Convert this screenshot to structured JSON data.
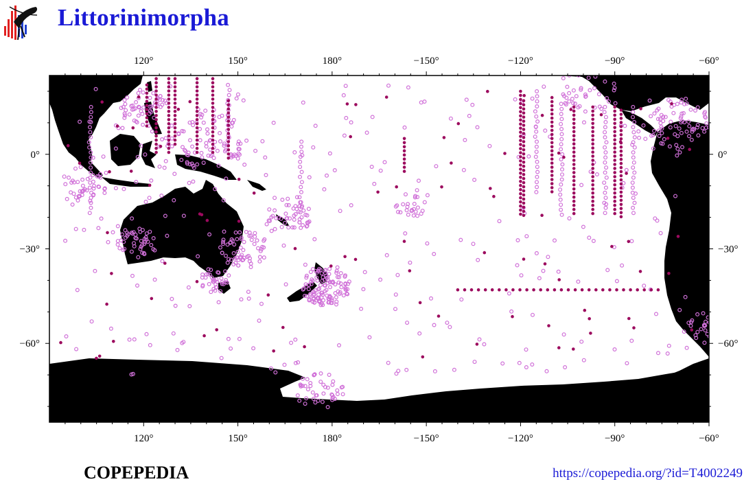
{
  "header": {
    "title": "Littorinimorpha"
  },
  "footer": {
    "brand": "COPEPEDIA",
    "url": "https://copepedia.org/?id=T4002249"
  },
  "colors": {
    "title": "#1a1ad6",
    "land": "#000000",
    "open_marker": "#d070d8",
    "filled_marker": "#9c0a5e"
  },
  "map": {
    "projection": "equirectangular",
    "lon_range": [
      90,
      300
    ],
    "lat_range": [
      -85,
      25
    ],
    "top_ticks": [
      "120°",
      "150°",
      "180°",
      "−150°",
      "−120°",
      "−90°",
      "−60°"
    ],
    "bottom_ticks": [
      "120°",
      "150°",
      "180°",
      "−150°",
      "−120°",
      "−90°",
      "−60°"
    ],
    "left_ticks": [
      "0°",
      "−30°",
      "−60°"
    ],
    "right_ticks": [
      "0°",
      "−30°",
      "−60°"
    ],
    "tick_lons": [
      120,
      150,
      180,
      210,
      240,
      270,
      300
    ],
    "tick_lats": [
      0,
      -30,
      -60
    ],
    "filled_series_lines": [
      {
        "lon": 121,
        "lat_from": 22,
        "lat_to": 8
      },
      {
        "lon": 124,
        "lat_from": 24,
        "lat_to": 0
      },
      {
        "lon": 128,
        "lat_from": 24,
        "lat_to": 0
      },
      {
        "lon": 130,
        "lat_from": 24,
        "lat_to": 3
      },
      {
        "lon": 137,
        "lat_from": 24,
        "lat_to": 0
      },
      {
        "lon": 142,
        "lat_from": 24,
        "lat_to": 0
      },
      {
        "lon": 147,
        "lat_from": 17,
        "lat_to": -2
      },
      {
        "lon": 240,
        "lat_from": 20,
        "lat_to": -20
      },
      {
        "lon": 241,
        "lat_from": 17,
        "lat_to": -20
      },
      {
        "lon": 250,
        "lat_from": 18,
        "lat_to": -12
      },
      {
        "lon": 257,
        "lat_from": 15,
        "lat_to": -20
      },
      {
        "lon": 263,
        "lat_from": 15,
        "lat_to": -20
      },
      {
        "lon": 270,
        "lat_from": 15,
        "lat_to": -20
      },
      {
        "lon": 272,
        "lat_from": 14,
        "lat_to": -20
      },
      {
        "lon": 203,
        "lat_from": 5,
        "lat_to": -6
      }
    ],
    "filled_line_lat_43": {
      "lat": -43,
      "lon_from": 220,
      "lon_to": 285
    },
    "open_series_lines": [
      {
        "lon": 103,
        "lat_from": 15,
        "lat_to": -20
      },
      {
        "lon": 170,
        "lat_from": 4,
        "lat_to": -22
      },
      {
        "lon": 147,
        "lat_from": 22,
        "lat_to": 2
      },
      {
        "lon": 245,
        "lat_from": 20,
        "lat_to": -12
      },
      {
        "lon": 253,
        "lat_from": 16,
        "lat_to": -20
      },
      {
        "lon": 267,
        "lat_from": 15,
        "lat_to": -20
      },
      {
        "lon": 276,
        "lat_from": 15,
        "lat_to": -20
      }
    ],
    "open_clusters": [
      {
        "lon": 152,
        "lat": -30,
        "spread": 6,
        "count": 60
      },
      {
        "lon": 178,
        "lat": -42,
        "spread": 6,
        "count": 120
      },
      {
        "lon": 118,
        "lat": -28,
        "spread": 5,
        "count": 45
      },
      {
        "lon": 143,
        "lat": -40,
        "spread": 4,
        "count": 35
      },
      {
        "lon": 140,
        "lat": 5,
        "spread": 10,
        "count": 90
      },
      {
        "lon": 120,
        "lat": 15,
        "spread": 6,
        "count": 50
      },
      {
        "lon": 290,
        "lat": 10,
        "spread": 8,
        "count": 70
      },
      {
        "lon": 262,
        "lat": 20,
        "spread": 8,
        "count": 40
      },
      {
        "lon": 176,
        "lat": -75,
        "spread": 6,
        "count": 45
      },
      {
        "lon": 166,
        "lat": -20,
        "spread": 6,
        "count": 45
      },
      {
        "lon": 205,
        "lat": -16,
        "spread": 4,
        "count": 20
      },
      {
        "lon": 298,
        "lat": -55,
        "spread": 5,
        "count": 30
      },
      {
        "lon": 101,
        "lat": -10,
        "spread": 6,
        "count": 40
      }
    ],
    "scatter_counts": {
      "open": 300,
      "filled": 90
    }
  }
}
